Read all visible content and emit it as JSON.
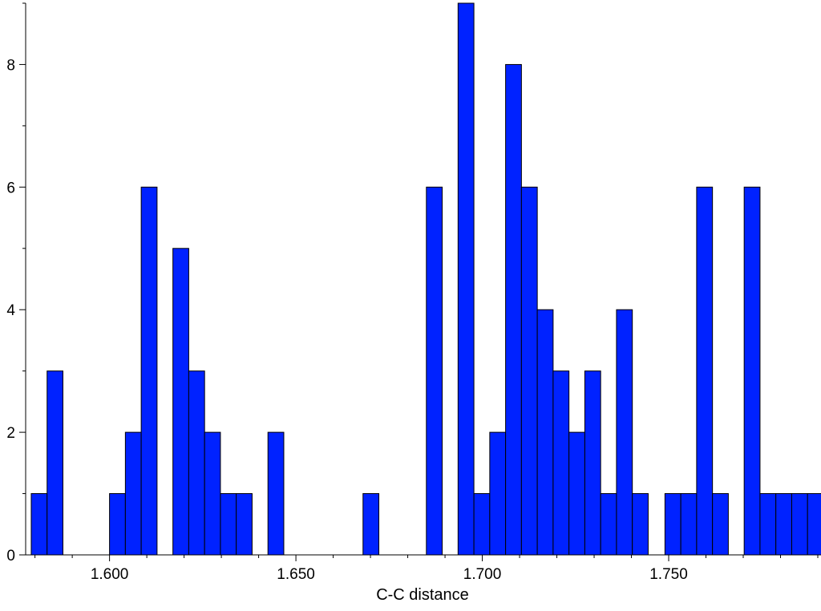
{
  "chart_data": {
    "type": "bar",
    "title": "",
    "xlabel": "C-C distance",
    "ylabel": "",
    "xlim": [
      1.5775,
      1.79
    ],
    "ylim": [
      0,
      9
    ],
    "x_tick_values": [
      1.6,
      1.65,
      1.7,
      1.75
    ],
    "x_tick_labels": [
      "1.600",
      "1.650",
      "1.700",
      "1.750"
    ],
    "y_tick_values": [
      0,
      2,
      4,
      6,
      8
    ],
    "y_tick_labels": [
      "0",
      "2",
      "4",
      "6",
      "8"
    ],
    "bin_width": 0.00425,
    "bin_left_edges": [
      1.579,
      1.58325,
      1.6,
      1.60425,
      1.6085,
      1.617,
      1.62125,
      1.6255,
      1.62975,
      1.634,
      1.6425,
      1.668,
      1.685,
      1.6935,
      1.69775,
      1.702,
      1.70625,
      1.7105,
      1.71475,
      1.719,
      1.72325,
      1.7275,
      1.73175,
      1.736,
      1.74025,
      1.749,
      1.75325,
      1.7575,
      1.76175,
      1.77025,
      1.7745,
      1.77875,
      1.783,
      1.78725
    ],
    "values": [
      1,
      3,
      1,
      2,
      6,
      5,
      3,
      2,
      1,
      1,
      2,
      1,
      6,
      9,
      1,
      2,
      8,
      6,
      4,
      3,
      2,
      3,
      1,
      4,
      1,
      1,
      1,
      6,
      1,
      6,
      1,
      1,
      1,
      1
    ],
    "bar_color": "#0022ff",
    "bar_edge_color": "#000000",
    "grid": false,
    "legend": false
  }
}
